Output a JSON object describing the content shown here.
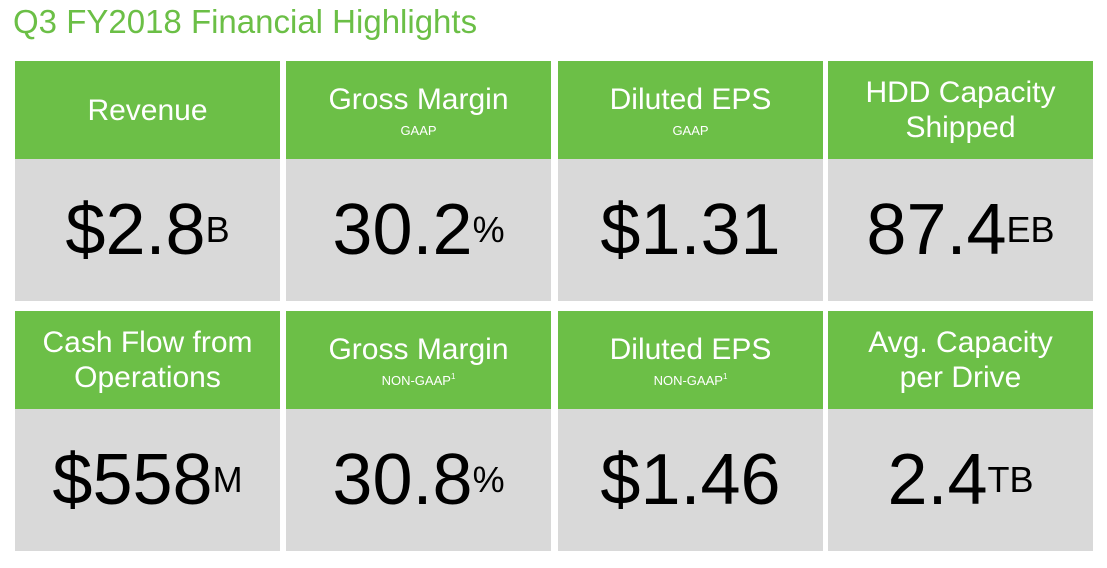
{
  "title": "Q3 FY2018 Financial Highlights",
  "colors": {
    "title": "#6bbf46",
    "header_bg": "#6cbf47",
    "body_bg": "#d9d9d9"
  },
  "cards": [
    {
      "title_line1": "Revenue",
      "title_line2": "",
      "sub": "",
      "sub_sup": "",
      "value": "$2.8",
      "unit": "B"
    },
    {
      "title_line1": "Gross Margin",
      "title_line2": "",
      "sub": "GAAP",
      "sub_sup": "",
      "value": "30.2",
      "unit": "%"
    },
    {
      "title_line1": "Diluted EPS",
      "title_line2": "",
      "sub": "GAAP",
      "sub_sup": "",
      "value": "$1.31",
      "unit": ""
    },
    {
      "title_line1": "HDD Capacity",
      "title_line2": "Shipped",
      "sub": "",
      "sub_sup": "",
      "value": "87.4",
      "unit": "EB"
    },
    {
      "title_line1": "Cash Flow from",
      "title_line2": "Operations",
      "sub": "",
      "sub_sup": "",
      "value": "$558",
      "unit": "M"
    },
    {
      "title_line1": "Gross Margin",
      "title_line2": "",
      "sub": "NON-GAAP",
      "sub_sup": "1",
      "value": "30.8",
      "unit": "%"
    },
    {
      "title_line1": "Diluted EPS",
      "title_line2": "",
      "sub": "NON-GAAP",
      "sub_sup": "1",
      "value": "$1.46",
      "unit": ""
    },
    {
      "title_line1": "Avg. Capacity",
      "title_line2": "per Drive",
      "sub": "",
      "sub_sup": "",
      "value": "2.4",
      "unit": "TB"
    }
  ]
}
